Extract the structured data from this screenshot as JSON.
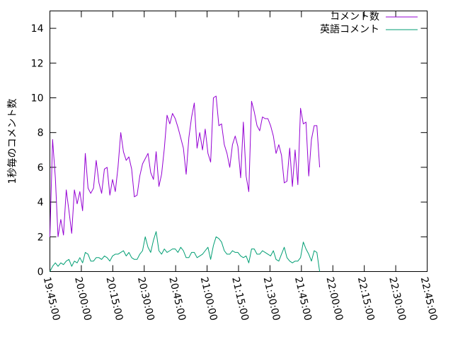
{
  "chart_data": {
    "type": "line",
    "title": "",
    "xlabel": "",
    "ylabel": "1秒毎のコメント数",
    "xlim": [
      "19:45:00",
      "22:45:00"
    ],
    "ylim": [
      0,
      15
    ],
    "x_tick_labels": [
      "19:45:00",
      "20:00:00",
      "20:15:00",
      "20:30:00",
      "20:45:00",
      "21:00:00",
      "21:15:00",
      "21:30:00",
      "21:45:00",
      "22:00:00",
      "22:15:00",
      "22:30:00",
      "22:45:00"
    ],
    "y_tick_labels": [
      "0",
      "2",
      "4",
      "6",
      "8",
      "10",
      "12",
      "14"
    ],
    "legend_position": "top-right",
    "grid": false,
    "series": [
      {
        "name": "コメント数",
        "color": "#9400d3",
        "points": [
          [
            "19:45:00",
            2.0
          ],
          [
            "19:46:18",
            7.6
          ],
          [
            "19:47:36",
            5.4
          ],
          [
            "19:48:54",
            2.0
          ],
          [
            "19:50:12",
            3.0
          ],
          [
            "19:51:30",
            2.1
          ],
          [
            "19:52:48",
            4.7
          ],
          [
            "19:54:06",
            3.5
          ],
          [
            "19:55:24",
            2.2
          ],
          [
            "19:56:42",
            4.7
          ],
          [
            "19:58:00",
            3.9
          ],
          [
            "19:59:18",
            4.6
          ],
          [
            "20:00:36",
            3.5
          ],
          [
            "20:01:54",
            6.8
          ],
          [
            "20:03:12",
            4.8
          ],
          [
            "20:04:30",
            4.5
          ],
          [
            "20:05:48",
            4.8
          ],
          [
            "20:07:06",
            6.4
          ],
          [
            "20:08:24",
            5.1
          ],
          [
            "20:09:42",
            4.5
          ],
          [
            "20:11:00",
            5.9
          ],
          [
            "20:12:18",
            6.0
          ],
          [
            "20:13:36",
            4.4
          ],
          [
            "20:14:54",
            5.3
          ],
          [
            "20:16:12",
            4.6
          ],
          [
            "20:17:30",
            6.0
          ],
          [
            "20:18:48",
            8.0
          ],
          [
            "20:20:06",
            6.9
          ],
          [
            "20:21:24",
            6.4
          ],
          [
            "20:22:42",
            6.6
          ],
          [
            "20:24:00",
            5.9
          ],
          [
            "20:25:18",
            4.3
          ],
          [
            "20:26:36",
            4.4
          ],
          [
            "20:27:54",
            5.5
          ],
          [
            "20:29:12",
            6.2
          ],
          [
            "20:30:30",
            6.5
          ],
          [
            "20:31:48",
            6.8
          ],
          [
            "20:33:06",
            5.7
          ],
          [
            "20:34:24",
            5.3
          ],
          [
            "20:35:42",
            6.9
          ],
          [
            "20:37:00",
            4.9
          ],
          [
            "20:38:18",
            5.6
          ],
          [
            "20:39:36",
            7.1
          ],
          [
            "20:40:54",
            9.0
          ],
          [
            "20:42:12",
            8.5
          ],
          [
            "20:43:30",
            9.1
          ],
          [
            "20:44:48",
            8.8
          ],
          [
            "20:46:06",
            8.3
          ],
          [
            "20:47:24",
            7.7
          ],
          [
            "20:48:42",
            7.1
          ],
          [
            "20:50:00",
            5.6
          ],
          [
            "20:51:18",
            7.7
          ],
          [
            "20:52:36",
            8.9
          ],
          [
            "20:53:54",
            9.7
          ],
          [
            "20:55:12",
            7.1
          ],
          [
            "20:56:30",
            8.0
          ],
          [
            "20:57:48",
            7.0
          ],
          [
            "20:59:06",
            8.2
          ],
          [
            "21:00:24",
            6.8
          ],
          [
            "21:01:42",
            6.3
          ],
          [
            "21:03:00",
            10.0
          ],
          [
            "21:04:18",
            10.1
          ],
          [
            "21:05:36",
            8.4
          ],
          [
            "21:06:54",
            8.5
          ],
          [
            "21:08:12",
            7.3
          ],
          [
            "21:09:30",
            6.8
          ],
          [
            "21:10:48",
            6.0
          ],
          [
            "21:12:06",
            7.3
          ],
          [
            "21:13:24",
            7.8
          ],
          [
            "21:14:42",
            7.2
          ],
          [
            "21:16:00",
            5.4
          ],
          [
            "21:17:18",
            8.6
          ],
          [
            "21:18:36",
            5.5
          ],
          [
            "21:19:54",
            4.6
          ],
          [
            "21:21:12",
            9.8
          ],
          [
            "21:22:30",
            9.2
          ],
          [
            "21:23:48",
            8.4
          ],
          [
            "21:25:06",
            8.1
          ],
          [
            "21:26:24",
            8.9
          ],
          [
            "21:27:42",
            8.8
          ],
          [
            "21:29:00",
            8.8
          ],
          [
            "21:30:18",
            8.4
          ],
          [
            "21:31:36",
            7.8
          ],
          [
            "21:32:54",
            6.8
          ],
          [
            "21:34:12",
            7.3
          ],
          [
            "21:35:30",
            6.7
          ],
          [
            "21:36:48",
            5.1
          ],
          [
            "21:38:06",
            5.2
          ],
          [
            "21:39:24",
            7.1
          ],
          [
            "21:40:42",
            4.9
          ],
          [
            "21:42:00",
            7.0
          ],
          [
            "21:43:18",
            5.0
          ],
          [
            "21:44:36",
            9.4
          ],
          [
            "21:45:54",
            8.5
          ],
          [
            "21:47:12",
            8.6
          ],
          [
            "21:48:30",
            5.5
          ],
          [
            "21:49:48",
            7.6
          ],
          [
            "21:51:06",
            8.4
          ],
          [
            "21:52:24",
            8.4
          ],
          [
            "21:53:42",
            6.0
          ]
        ]
      },
      {
        "name": "英語コメント",
        "color": "#009e73",
        "points": [
          [
            "19:45:00",
            0.0
          ],
          [
            "19:46:18",
            0.3
          ],
          [
            "19:47:36",
            0.5
          ],
          [
            "19:48:54",
            0.3
          ],
          [
            "19:50:12",
            0.5
          ],
          [
            "19:51:30",
            0.4
          ],
          [
            "19:52:48",
            0.6
          ],
          [
            "19:54:06",
            0.7
          ],
          [
            "19:55:24",
            0.3
          ],
          [
            "19:56:42",
            0.6
          ],
          [
            "19:58:00",
            0.5
          ],
          [
            "19:59:18",
            0.8
          ],
          [
            "20:00:36",
            0.5
          ],
          [
            "20:01:54",
            1.1
          ],
          [
            "20:03:12",
            1.0
          ],
          [
            "20:04:30",
            0.6
          ],
          [
            "20:05:48",
            0.6
          ],
          [
            "20:07:06",
            0.8
          ],
          [
            "20:08:24",
            0.8
          ],
          [
            "20:09:42",
            0.7
          ],
          [
            "20:11:00",
            0.9
          ],
          [
            "20:12:18",
            0.8
          ],
          [
            "20:13:36",
            0.6
          ],
          [
            "20:14:54",
            0.9
          ],
          [
            "20:16:12",
            1.0
          ],
          [
            "20:17:30",
            1.0
          ],
          [
            "20:18:48",
            1.1
          ],
          [
            "20:20:06",
            1.2
          ],
          [
            "20:21:24",
            0.9
          ],
          [
            "20:22:42",
            1.1
          ],
          [
            "20:24:00",
            0.8
          ],
          [
            "20:25:18",
            0.7
          ],
          [
            "20:26:36",
            0.7
          ],
          [
            "20:27:54",
            1.0
          ],
          [
            "20:29:12",
            1.2
          ],
          [
            "20:30:30",
            2.0
          ],
          [
            "20:31:48",
            1.4
          ],
          [
            "20:33:06",
            1.1
          ],
          [
            "20:34:24",
            1.8
          ],
          [
            "20:35:42",
            2.3
          ],
          [
            "20:37:00",
            1.2
          ],
          [
            "20:38:18",
            1.0
          ],
          [
            "20:39:36",
            1.3
          ],
          [
            "20:40:54",
            1.1
          ],
          [
            "20:42:12",
            1.2
          ],
          [
            "20:43:30",
            1.3
          ],
          [
            "20:44:48",
            1.3
          ],
          [
            "20:46:06",
            1.1
          ],
          [
            "20:47:24",
            1.4
          ],
          [
            "20:48:42",
            1.2
          ],
          [
            "20:50:00",
            0.8
          ],
          [
            "20:51:18",
            0.8
          ],
          [
            "20:52:36",
            1.1
          ],
          [
            "20:53:54",
            1.1
          ],
          [
            "20:55:12",
            0.8
          ],
          [
            "20:56:30",
            0.9
          ],
          [
            "20:57:48",
            1.0
          ],
          [
            "20:59:06",
            1.2
          ],
          [
            "21:00:24",
            1.4
          ],
          [
            "21:01:42",
            0.7
          ],
          [
            "21:03:00",
            1.5
          ],
          [
            "21:04:18",
            2.0
          ],
          [
            "21:05:36",
            1.9
          ],
          [
            "21:06:54",
            1.7
          ],
          [
            "21:08:12",
            1.2
          ],
          [
            "21:09:30",
            1.0
          ],
          [
            "21:10:48",
            1.0
          ],
          [
            "21:12:06",
            1.2
          ],
          [
            "21:13:24",
            1.1
          ],
          [
            "21:14:42",
            1.1
          ],
          [
            "21:16:00",
            0.9
          ],
          [
            "21:17:18",
            0.8
          ],
          [
            "21:18:36",
            0.9
          ],
          [
            "21:19:54",
            0.5
          ],
          [
            "21:21:12",
            1.3
          ],
          [
            "21:22:30",
            1.3
          ],
          [
            "21:23:48",
            1.0
          ],
          [
            "21:25:06",
            1.0
          ],
          [
            "21:26:24",
            1.2
          ],
          [
            "21:27:42",
            1.1
          ],
          [
            "21:29:00",
            1.0
          ],
          [
            "21:30:18",
            0.9
          ],
          [
            "21:31:36",
            1.2
          ],
          [
            "21:32:54",
            0.7
          ],
          [
            "21:34:12",
            0.6
          ],
          [
            "21:35:30",
            1.0
          ],
          [
            "21:36:48",
            1.4
          ],
          [
            "21:38:06",
            0.8
          ],
          [
            "21:39:24",
            0.6
          ],
          [
            "21:40:42",
            0.5
          ],
          [
            "21:42:00",
            0.6
          ],
          [
            "21:43:18",
            0.6
          ],
          [
            "21:44:36",
            0.8
          ],
          [
            "21:45:54",
            1.7
          ],
          [
            "21:47:12",
            1.3
          ],
          [
            "21:48:30",
            1.0
          ],
          [
            "21:49:48",
            0.6
          ],
          [
            "21:51:06",
            1.2
          ],
          [
            "21:52:24",
            1.1
          ],
          [
            "21:53:42",
            0.0
          ]
        ]
      }
    ]
  }
}
